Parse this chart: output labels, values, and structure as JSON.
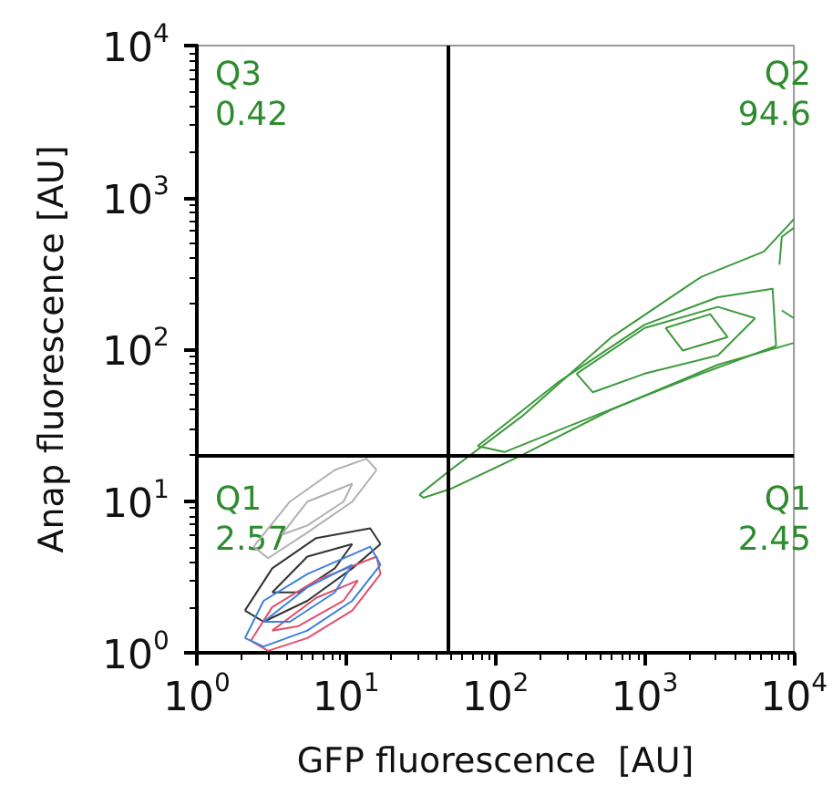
{
  "chart_data": {
    "type": "line",
    "xlabel": "GFP fluorescence  [AU]",
    "ylabel": "Anap fluorescence [AU]",
    "log": "xy",
    "grid": false,
    "marker": "none",
    "line_style": "solid",
    "xlim": [
      1,
      10000
    ],
    "ylim": [
      1,
      10000
    ],
    "xticks": [
      {
        "value": 1,
        "label": "10$^{0}$"
      },
      {
        "value": 10,
        "label": "10$^{1}$"
      },
      {
        "value": 100,
        "label": "10$^{2}$"
      },
      {
        "value": 1000,
        "label": "10$^{3}$"
      },
      {
        "value": 10000,
        "label": "10$^{4}$"
      }
    ],
    "yticks": [
      {
        "value": 1,
        "label": "10$^{0}$"
      },
      {
        "value": 10,
        "label": "10$^{1}$"
      },
      {
        "value": 100,
        "label": "10$^{2}$"
      },
      {
        "value": 1000,
        "label": "10$^{3}$"
      },
      {
        "value": 10000,
        "label": "10$^{4}$"
      }
    ],
    "ref_lines": [
      {
        "axis": "x",
        "value": 48,
        "color": "#000000"
      },
      {
        "axis": "y",
        "value": 20,
        "color": "#000000"
      }
    ],
    "annotations": [
      "Q3\n0.42",
      "Q2\n94.6",
      "Q1\n2.57",
      "Q1\n2.45"
    ],
    "series": [
      {
        "color": "#3c9a3c",
        "x": [
          31,
          50,
          150,
          600,
          2400,
          6300,
          9500,
          10000
        ],
        "values": [
          11,
          16,
          36,
          120,
          300,
          440,
          680,
          720
        ]
      },
      {
        "color": "#3c9a3c",
        "x": [
          31,
          33,
          50,
          150,
          600,
          3100,
          10000
        ],
        "values": [
          11,
          10.5,
          12,
          20,
          40,
          79,
          110
        ]
      },
      {
        "color": "#3c9a3c",
        "x": [
          76,
          260,
          1000,
          3100,
          7200,
          7600
        ],
        "values": [
          23,
          60,
          145,
          220,
          250,
          105
        ]
      },
      {
        "color": "#3c9a3c",
        "x": [
          76,
          115,
          450,
          2400,
          7600
        ],
        "values": [
          23,
          21,
          36,
          69,
          105
        ]
      },
      {
        "color": "#3c9a3c",
        "x": [
          350,
          1000,
          3100,
          5500
        ],
        "values": [
          69,
          138,
          190,
          160
        ]
      },
      {
        "color": "#3c9a3c",
        "x": [
          350,
          450,
          1000,
          3100,
          5500
        ],
        "values": [
          69,
          52,
          69,
          91,
          160
        ]
      },
      {
        "color": "#3c9a3c",
        "x": [
          1380,
          2750,
          3600
        ],
        "values": [
          138,
          170,
          120
        ]
      },
      {
        "color": "#3c9a3c",
        "x": [
          1380,
          1800,
          3600
        ],
        "values": [
          138,
          98,
          120
        ]
      },
      {
        "color": "#3c9a3c",
        "x": [
          8000,
          8300,
          10000
        ],
        "values": [
          360,
          550,
          630
        ]
      },
      {
        "color": "#3c9a3c",
        "x": [
          8300,
          10000
        ],
        "values": [
          180,
          160
        ]
      },
      {
        "color": "#b0b0b0",
        "x": [
          2.4,
          4.2,
          8.4,
          13.7,
          16
        ],
        "values": [
          5.0,
          9.9,
          16,
          19,
          16
        ]
      },
      {
        "color": "#b0b0b0",
        "x": [
          2.4,
          3.0,
          5.5,
          11,
          16
        ],
        "values": [
          5.0,
          4.2,
          6.2,
          9.9,
          16
        ]
      },
      {
        "color": "#b0b0b0",
        "x": [
          3.7,
          5.5,
          11
        ],
        "values": [
          6.0,
          9.9,
          13
        ]
      },
      {
        "color": "#b0b0b0",
        "x": [
          3.7,
          5.5,
          9.6,
          11
        ],
        "values": [
          6.0,
          6.9,
          9.9,
          13
        ]
      },
      {
        "color": "#333333",
        "x": [
          2.1,
          3.2,
          6.3,
          14.5,
          17
        ],
        "values": [
          1.9,
          3.6,
          5.7,
          6.6,
          5.2
        ]
      },
      {
        "color": "#333333",
        "x": [
          2.1,
          2.8,
          5.5,
          11,
          17
        ],
        "values": [
          1.9,
          1.6,
          2.2,
          3.6,
          5.2
        ]
      },
      {
        "color": "#333333",
        "x": [
          3.2,
          5.5,
          11
        ],
        "values": [
          2.5,
          4.3,
          5.2
        ]
      },
      {
        "color": "#333333",
        "x": [
          3.2,
          4.8,
          8.4,
          11
        ],
        "values": [
          2.5,
          2.5,
          3.6,
          5.2
        ]
      },
      {
        "color": "#e0506a",
        "x": [
          2.3,
          3.2,
          6.3,
          16,
          17
        ],
        "values": [
          1.2,
          2.0,
          3.0,
          4.3,
          3.3
        ]
      },
      {
        "color": "#e0506a",
        "x": [
          2.3,
          3.0,
          5.5,
          11,
          17
        ],
        "values": [
          1.2,
          1.03,
          1.25,
          1.9,
          3.3
        ]
      },
      {
        "color": "#e0506a",
        "x": [
          3.2,
          6.3,
          12
        ],
        "values": [
          1.4,
          2.3,
          3.0
        ]
      },
      {
        "color": "#e0506a",
        "x": [
          3.2,
          4.8,
          9.6,
          12
        ],
        "values": [
          1.4,
          1.5,
          2.2,
          3.0
        ]
      },
      {
        "color": "#3a7fe0",
        "x": [
          2.1,
          2.8,
          5.5,
          14.5,
          17
        ],
        "values": [
          1.25,
          2.2,
          3.3,
          5.0,
          3.8
        ]
      },
      {
        "color": "#3a7fe0",
        "x": [
          2.1,
          2.8,
          5.5,
          11,
          17
        ],
        "values": [
          1.25,
          1.1,
          1.4,
          2.2,
          3.8
        ]
      },
      {
        "color": "#3a7fe0",
        "x": [
          2.8,
          5.5,
          11
        ],
        "values": [
          1.6,
          2.7,
          3.8
        ]
      },
      {
        "color": "#3a7fe0",
        "x": [
          2.8,
          4.2,
          8.4,
          11
        ],
        "values": [
          1.6,
          1.6,
          2.5,
          3.8
        ]
      }
    ]
  }
}
